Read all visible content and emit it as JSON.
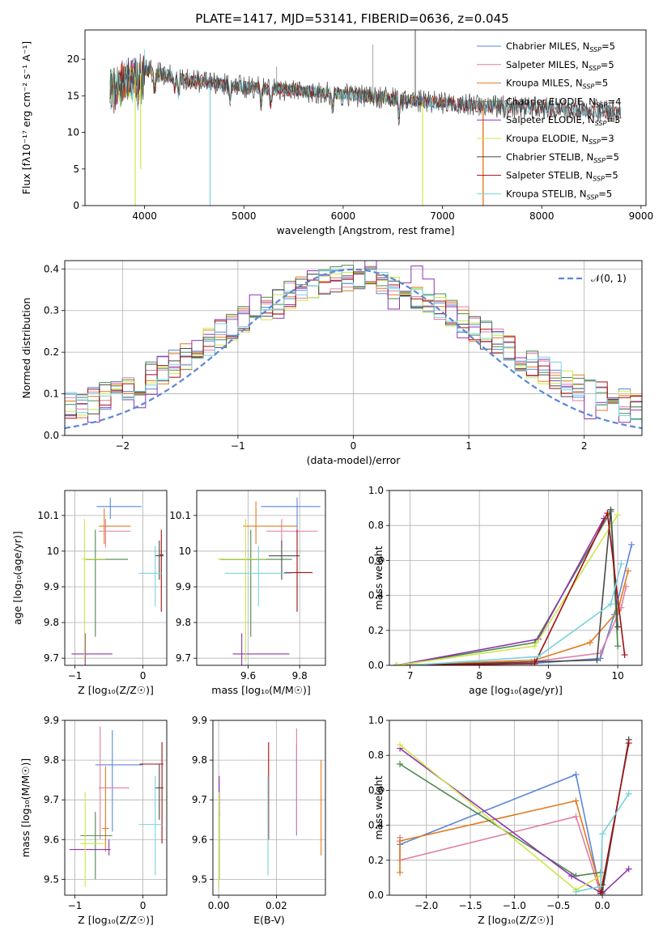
{
  "figure_title": "PLATE=1417, MJD=53141, FIBERID=0636, z=0.045",
  "colors": {
    "Chabrier MILES": "#5b87d8",
    "Salpeter MILES": "#e07fa3",
    "Kroupa MILES": "#e07b20",
    "Chabrier ELODIE": "#4e8a4e",
    "Salpeter ELODIE": "#8e35b0",
    "Kroupa ELODIE": "#cfe64a",
    "Chabrier STELIB": "#4a4a4a",
    "Salpeter STELIB": "#a01010",
    "Kroupa STELIB": "#77d2e0",
    "normal_curve": "#5b87d8",
    "grid": "#b0b0b0"
  },
  "chart_data": [
    {
      "id": "spectrum",
      "type": "line",
      "title": "PLATE=1417, MJD=53141, FIBERID=0636, z=0.045",
      "xlabel": "wavelength [Angstrom, rest frame]",
      "ylabel": "Flux [fλ10⁻¹⁷ erg cm⁻² s⁻¹ A⁻¹]",
      "xlim": [
        3400,
        9050
      ],
      "ylim": [
        0,
        24
      ],
      "xticks": [
        4000,
        5000,
        6000,
        7000,
        8000,
        9000
      ],
      "yticks": [
        0,
        5,
        10,
        15,
        20
      ],
      "grid": false,
      "legend_position": "top-right",
      "legend": [
        {
          "series": "Chabrier MILES",
          "base": "Chabrier MILES, N",
          "sub": "SSP",
          "tail": "=5"
        },
        {
          "series": "Salpeter MILES",
          "base": "Salpeter MILES, N",
          "sub": "SSP",
          "tail": "=5"
        },
        {
          "series": "Kroupa MILES",
          "base": "Kroupa MILES, N",
          "sub": "SSP",
          "tail": "=5"
        },
        {
          "series": "Chabrier ELODIE",
          "base": "Chabrier ELODIE, N",
          "sub": "SSP",
          "tail": "=4"
        },
        {
          "series": "Salpeter ELODIE",
          "base": "Salpeter ELODIE, N",
          "sub": "SSP",
          "tail": "=3"
        },
        {
          "series": "Kroupa ELODIE",
          "base": "Kroupa ELODIE, N",
          "sub": "SSP",
          "tail": "=3"
        },
        {
          "series": "Chabrier STELIB",
          "base": "Chabrier STELIB, N",
          "sub": "SSP",
          "tail": "=5"
        },
        {
          "series": "Salpeter STELIB",
          "base": "Salpeter STELIB, N",
          "sub": "SSP",
          "tail": "=5"
        },
        {
          "series": "Kroupa STELIB",
          "base": "Kroupa STELIB, N",
          "sub": "SSP",
          "tail": "=5"
        }
      ],
      "continuum": {
        "x": [
          3650,
          3750,
          3900,
          4000,
          4200,
          4500,
          5000,
          5500,
          6000,
          6500,
          7000,
          7500,
          8000,
          8500,
          8800
        ],
        "y": [
          15.5,
          16.5,
          17.5,
          18.5,
          18.0,
          17.0,
          16.2,
          15.8,
          15.2,
          14.6,
          14.0,
          13.6,
          13.3,
          13.0,
          12.8
        ]
      },
      "series_ranges": [
        {
          "name": "Chabrier MILES",
          "x": [
            3650,
            7410
          ]
        },
        {
          "name": "Salpeter MILES",
          "x": [
            3650,
            7410
          ]
        },
        {
          "name": "Kroupa MILES",
          "x": [
            3650,
            7410
          ]
        },
        {
          "name": "Chabrier ELODIE",
          "x": [
            3650,
            6800
          ]
        },
        {
          "name": "Salpeter ELODIE",
          "x": [
            3650,
            6800
          ]
        },
        {
          "name": "Kroupa ELODIE",
          "x": [
            3650,
            6800
          ]
        },
        {
          "name": "Chabrier STELIB",
          "x": [
            3650,
            8800
          ]
        },
        {
          "name": "Salpeter STELIB",
          "x": [
            3650,
            8800
          ]
        },
        {
          "name": "Kroupa STELIB",
          "x": [
            3650,
            8800
          ]
        }
      ],
      "dips": [
        {
          "series": "Kroupa ELODIE",
          "x": 3905,
          "y": 0
        },
        {
          "series": "Kroupa ELODIE",
          "x": 3960,
          "y": 5
        },
        {
          "series": "Kroupa STELIB",
          "x": 4660,
          "y": 0
        },
        {
          "series": "Kroupa ELODIE",
          "x": 6800,
          "y": 0
        },
        {
          "series": "Kroupa MILES",
          "x": 7410,
          "y": 0
        }
      ]
    },
    {
      "id": "residuals",
      "type": "line",
      "xlabel": "(data-model)/error",
      "ylabel": "Normed distribution",
      "xlim": [
        -2.5,
        2.5
      ],
      "ylim": [
        0,
        0.42
      ],
      "xticks": [
        -2,
        -1,
        0,
        1,
        2
      ],
      "yticks": [
        0.0,
        0.1,
        0.2,
        0.3,
        0.4
      ],
      "grid": true,
      "legend_position": "top-right",
      "reference_label": "𝒩(0, 1)",
      "bin_width": 0.1,
      "series": [
        "Chabrier MILES",
        "Salpeter MILES",
        "Kroupa MILES",
        "Chabrier ELODIE",
        "Salpeter ELODIE",
        "Kroupa ELODIE",
        "Chabrier STELIB",
        "Salpeter STELIB",
        "Kroupa STELIB"
      ]
    },
    {
      "id": "age-vs-Z",
      "type": "scatter",
      "xlabel": "Z [log₁₀(Z/Z☉)]",
      "ylabel": "age  [log₁₀(age/yr)]",
      "xlim": [
        -1.15,
        0.35
      ],
      "ylim": [
        9.68,
        10.17
      ],
      "xticks": [
        -1,
        0
      ],
      "yticks": [
        9.7,
        9.8,
        9.9,
        10.0,
        10.1
      ],
      "grid": true,
      "points": [
        {
          "series": "Chabrier MILES",
          "x": -0.48,
          "xlo": -0.68,
          "xhi": -0.02,
          "y": 10.125,
          "ylo": 10.09,
          "yhi": 10.15
        },
        {
          "series": "Salpeter MILES",
          "x": -0.55,
          "xlo": -0.65,
          "xhi": -0.18,
          "y": 10.056,
          "ylo": 10.01,
          "yhi": 10.09
        },
        {
          "series": "Kroupa MILES",
          "x": -0.57,
          "xlo": -0.65,
          "xhi": -0.18,
          "y": 10.07,
          "ylo": 10.02,
          "yhi": 10.12
        },
        {
          "series": "Chabrier ELODIE",
          "x": -0.7,
          "xlo": -0.85,
          "xhi": -0.22,
          "y": 9.977,
          "ylo": 9.76,
          "yhi": 10.06
        },
        {
          "series": "Salpeter ELODIE",
          "x": -0.85,
          "xlo": -1.05,
          "xhi": -0.45,
          "y": 9.712,
          "ylo": 9.68,
          "yhi": 9.77
        },
        {
          "series": "Kroupa ELODIE",
          "x": -0.86,
          "xlo": -0.9,
          "xhi": -0.55,
          "y": 9.978,
          "ylo": 9.69,
          "yhi": 10.09
        },
        {
          "series": "Chabrier STELIB",
          "x": 0.24,
          "xlo": 0.18,
          "xhi": 0.3,
          "y": 9.987,
          "ylo": 9.92,
          "yhi": 10.03
        },
        {
          "series": "Salpeter STELIB",
          "x": 0.27,
          "xlo": 0.25,
          "xhi": 0.3,
          "y": 9.99,
          "ylo": 9.83,
          "yhi": 10.06
        },
        {
          "series": "Kroupa STELIB",
          "x": 0.18,
          "xlo": -0.06,
          "xhi": 0.28,
          "y": 9.938,
          "ylo": 9.845,
          "yhi": 10.015
        }
      ]
    },
    {
      "id": "age-vs-mass",
      "type": "scatter",
      "xlabel": "mass [log₁₀(M/M☉)]",
      "ylabel": "",
      "xlim": [
        9.4,
        9.9
      ],
      "ylim": [
        9.68,
        10.17
      ],
      "xticks": [
        9.6,
        9.8
      ],
      "yticks": [
        9.7,
        9.8,
        9.9,
        10.0,
        10.1
      ],
      "grid": true,
      "points": [
        {
          "series": "Chabrier MILES",
          "x": 9.79,
          "xlo": 9.65,
          "xhi": 9.88,
          "y": 10.125,
          "ylo": 10.05,
          "yhi": 10.15
        },
        {
          "series": "Salpeter MILES",
          "x": 9.73,
          "xlo": 9.67,
          "xhi": 9.87,
          "y": 10.056,
          "ylo": 10.01,
          "yhi": 10.09
        },
        {
          "series": "Kroupa MILES",
          "x": 9.63,
          "xlo": 9.58,
          "xhi": 9.79,
          "y": 10.07,
          "ylo": 10.02,
          "yhi": 10.14
        },
        {
          "series": "Chabrier ELODIE",
          "x": 9.61,
          "xlo": 9.49,
          "xhi": 9.77,
          "y": 9.977,
          "ylo": 9.76,
          "yhi": 10.06
        },
        {
          "series": "Salpeter ELODIE",
          "x": 9.575,
          "xlo": 9.54,
          "xhi": 9.76,
          "y": 9.712,
          "ylo": 9.68,
          "yhi": 9.77
        },
        {
          "series": "Kroupa ELODIE",
          "x": 9.59,
          "xlo": 9.48,
          "xhi": 9.67,
          "y": 9.978,
          "ylo": 9.69,
          "yhi": 10.09
        },
        {
          "series": "Chabrier STELIB",
          "x": 9.73,
          "xlo": 9.68,
          "xhi": 9.8,
          "y": 9.987,
          "ylo": 9.92,
          "yhi": 10.03
        },
        {
          "series": "Salpeter STELIB",
          "x": 9.79,
          "xlo": 9.74,
          "xhi": 9.85,
          "y": 9.94,
          "ylo": 9.83,
          "yhi": 10.06
        },
        {
          "series": "Kroupa STELIB",
          "x": 9.64,
          "xlo": 9.51,
          "xhi": 9.77,
          "y": 9.938,
          "ylo": 9.845,
          "yhi": 10.015
        }
      ]
    },
    {
      "id": "mw-vs-age",
      "type": "line",
      "xlabel": "age  [log₁₀(age/yr)]",
      "ylabel": "mass weight",
      "xlim": [
        6.7,
        10.35
      ],
      "ylim": [
        0,
        1.0
      ],
      "xticks": [
        7,
        8,
        9,
        10
      ],
      "yticks": [
        0.0,
        0.2,
        0.4,
        0.6,
        0.8,
        1.0
      ],
      "grid": true,
      "series": [
        {
          "name": "Chabrier MILES",
          "x": [
            6.8,
            8.75,
            9.75,
            9.95,
            10.2
          ],
          "y": [
            0.0,
            0.01,
            0.04,
            0.29,
            0.69
          ]
        },
        {
          "name": "Salpeter MILES",
          "x": [
            6.8,
            8.75,
            9.75,
            10.05,
            10.12
          ],
          "y": [
            0.0,
            0.02,
            0.07,
            0.33,
            0.45
          ]
        },
        {
          "name": "Kroupa MILES",
          "x": [
            6.8,
            8.8,
            9.6,
            10.0,
            10.15
          ],
          "y": [
            0.0,
            0.03,
            0.13,
            0.31,
            0.54
          ]
        },
        {
          "name": "Chabrier ELODIE",
          "x": [
            6.8,
            8.8,
            9.9,
            10.0
          ],
          "y": [
            0.0,
            0.13,
            0.88,
            0.11
          ]
        },
        {
          "name": "Salpeter ELODIE",
          "x": [
            6.8,
            8.85,
            9.8
          ],
          "y": [
            0.0,
            0.15,
            0.84
          ]
        },
        {
          "name": "Kroupa ELODIE",
          "x": [
            6.8,
            8.8,
            10.0
          ],
          "y": [
            0.0,
            0.11,
            0.86
          ]
        },
        {
          "name": "Chabrier STELIB",
          "x": [
            7.0,
            8.8,
            9.7,
            9.9,
            10.0
          ],
          "y": [
            0.0,
            0.02,
            0.03,
            0.89,
            0.22
          ]
        },
        {
          "name": "Salpeter STELIB",
          "x": [
            7.0,
            8.8,
            9.85,
            10.1
          ],
          "y": [
            0.0,
            0.01,
            0.87,
            0.06
          ]
        },
        {
          "name": "Kroupa STELIB",
          "x": [
            7.0,
            8.85,
            9.9,
            10.05
          ],
          "y": [
            0.0,
            0.05,
            0.35,
            0.58
          ]
        }
      ]
    },
    {
      "id": "mass-vs-Z",
      "type": "scatter",
      "xlabel": "Z [log₁₀(Z/Z☉)]",
      "ylabel": "mass [log₁₀(M/M☉)]",
      "xlim": [
        -1.15,
        0.35
      ],
      "ylim": [
        9.46,
        9.9
      ],
      "xticks": [
        -1,
        0
      ],
      "yticks": [
        9.5,
        9.6,
        9.7,
        9.8,
        9.9
      ],
      "grid": true,
      "points": [
        {
          "series": "Chabrier MILES",
          "x": -0.45,
          "xlo": -0.7,
          "xhi": 0.0,
          "y": 9.788,
          "ylo": 9.62,
          "yhi": 9.875
        },
        {
          "series": "Salpeter MILES",
          "x": -0.63,
          "xlo": -0.65,
          "xhi": -0.2,
          "y": 9.73,
          "ylo": 9.6,
          "yhi": 9.885
        },
        {
          "series": "Kroupa MILES",
          "x": -0.55,
          "xlo": -0.6,
          "xhi": -0.5,
          "y": 9.628,
          "ylo": 9.57,
          "yhi": 9.785
        },
        {
          "series": "Chabrier ELODIE",
          "x": -0.7,
          "xlo": -0.92,
          "xhi": -0.45,
          "y": 9.61,
          "ylo": 9.5,
          "yhi": 9.67
        },
        {
          "series": "Salpeter ELODIE",
          "x": -0.5,
          "xlo": -1.08,
          "xhi": -0.48,
          "y": 9.575,
          "ylo": 9.56,
          "yhi": 9.6
        },
        {
          "series": "Kroupa ELODIE",
          "x": -0.85,
          "xlo": -0.92,
          "xhi": -0.55,
          "y": 9.59,
          "ylo": 9.48,
          "yhi": 9.72
        },
        {
          "series": "Chabrier STELIB",
          "x": 0.24,
          "xlo": 0.18,
          "xhi": 0.3,
          "y": 9.73,
          "ylo": 9.65,
          "yhi": 9.79
        },
        {
          "series": "Salpeter STELIB",
          "x": 0.28,
          "xlo": -0.05,
          "xhi": 0.3,
          "y": 9.79,
          "ylo": 9.59,
          "yhi": 9.845
        },
        {
          "series": "Kroupa STELIB",
          "x": 0.18,
          "xlo": -0.06,
          "xhi": 0.28,
          "y": 9.638,
          "ylo": 9.51,
          "yhi": 9.76
        }
      ]
    },
    {
      "id": "mass-vs-ebv",
      "type": "scatter",
      "xlabel": "E(B-V)",
      "ylabel": "",
      "xlim": [
        -0.002,
        0.037
      ],
      "ylim": [
        9.46,
        9.9
      ],
      "xticks": [
        0.0,
        0.02
      ],
      "xticklabels": [
        "0.00",
        "0.02"
      ],
      "yticks": [
        9.5,
        9.6,
        9.7,
        9.8,
        9.9
      ],
      "grid": true,
      "points": [
        {
          "series": "Chabrier MILES",
          "x": 0.027,
          "y": 9.73,
          "ylo": 9.61,
          "yhi": 9.84
        },
        {
          "series": "Salpeter MILES",
          "x": 0.027,
          "y": 9.74,
          "ylo": 9.62,
          "yhi": 9.88
        },
        {
          "series": "Kroupa MILES",
          "x": 0.0355,
          "y": 9.68,
          "ylo": 9.56,
          "yhi": 9.8
        },
        {
          "series": "Chabrier ELODIE",
          "x": 0.0002,
          "y": 9.61,
          "ylo": 9.5,
          "yhi": 9.67
        },
        {
          "series": "Salpeter ELODIE",
          "x": 0.0002,
          "y": 9.7,
          "ylo": 9.66,
          "yhi": 9.76
        },
        {
          "series": "Kroupa ELODIE",
          "x": 0.0001,
          "y": 9.59,
          "ylo": 9.48,
          "yhi": 9.72
        },
        {
          "series": "Chabrier STELIB",
          "x": 0.0172,
          "y": 9.7,
          "ylo": 9.65,
          "yhi": 9.76
        },
        {
          "series": "Salpeter STELIB",
          "x": 0.0173,
          "y": 9.76,
          "ylo": 9.6,
          "yhi": 9.845
        },
        {
          "series": "Kroupa STELIB",
          "x": 0.0171,
          "y": 9.64,
          "ylo": 9.51,
          "yhi": 9.76
        }
      ]
    },
    {
      "id": "mw-vs-Z",
      "type": "line",
      "xlabel": "Z [log₁₀(Z/Z☉)]",
      "ylabel": "mass weight",
      "xlim": [
        -2.42,
        0.45
      ],
      "ylim": [
        0,
        1.0
      ],
      "xticks": [
        -2.0,
        -1.5,
        -1.0,
        -0.5,
        0.0
      ],
      "xticklabels": [
        "−2.0",
        "−1.5",
        "−1.0",
        "−0.5",
        "0.0"
      ],
      "yticks": [
        0.0,
        0.2,
        0.4,
        0.6,
        0.8,
        1.0
      ],
      "grid": true,
      "series": [
        {
          "name": "Chabrier MILES",
          "x": [
            -2.3,
            -0.3,
            -0.02
          ],
          "y": [
            0.29,
            0.69,
            0.01
          ]
        },
        {
          "name": "Salpeter MILES",
          "x": [
            -2.3,
            -2.3,
            -0.3,
            -0.02
          ],
          "y": [
            0.33,
            0.2,
            0.45,
            0.01
          ]
        },
        {
          "name": "Kroupa MILES",
          "x": [
            -2.3,
            -2.3,
            -0.3,
            -0.02
          ],
          "y": [
            0.13,
            0.31,
            0.54,
            0.03
          ]
        },
        {
          "name": "Chabrier ELODIE",
          "x": [
            -2.3,
            -0.3,
            -0.02
          ],
          "y": [
            0.75,
            0.11,
            0.13
          ]
        },
        {
          "name": "Salpeter ELODIE",
          "x": [
            -2.3,
            -0.35,
            0.0,
            0.3
          ],
          "y": [
            0.84,
            0.11,
            0.01,
            0.15
          ]
        },
        {
          "name": "Kroupa ELODIE",
          "x": [
            -2.3,
            -0.3,
            -0.02
          ],
          "y": [
            0.86,
            0.03,
            0.11
          ]
        },
        {
          "name": "Chabrier STELIB",
          "x": [
            -0.02,
            0.0,
            0.3
          ],
          "y": [
            0.02,
            0.02,
            0.89
          ]
        },
        {
          "name": "Salpeter STELIB",
          "x": [
            -0.02,
            0.0,
            0.3
          ],
          "y": [
            0.01,
            0.06,
            0.87
          ]
        },
        {
          "name": "Kroupa STELIB",
          "x": [
            -0.3,
            -0.02,
            0.0,
            0.3
          ],
          "y": [
            0.02,
            0.05,
            0.35,
            0.58
          ]
        }
      ]
    }
  ]
}
